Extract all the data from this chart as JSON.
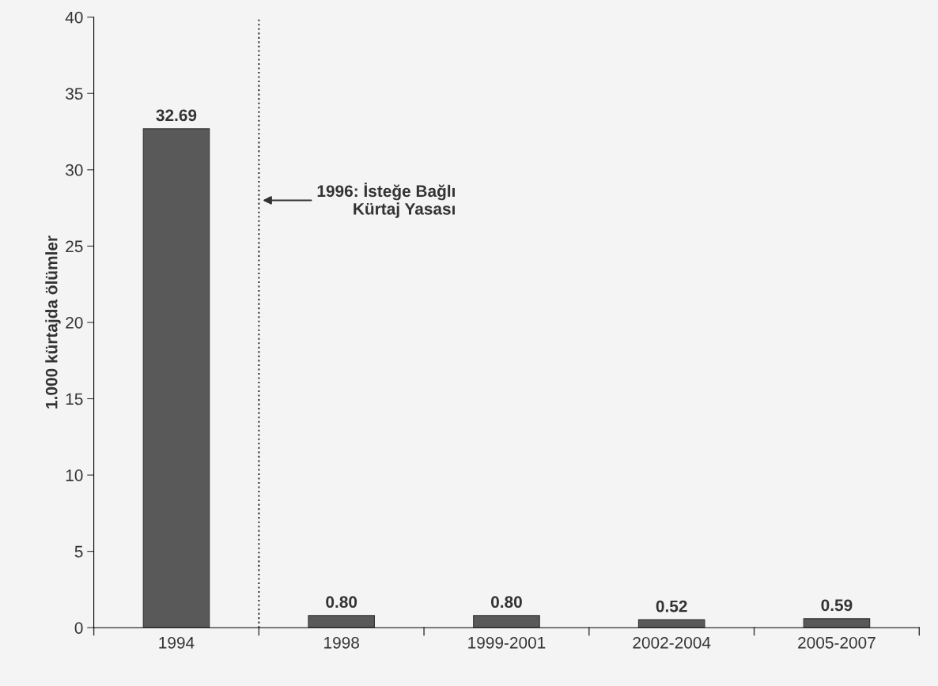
{
  "chart_data": {
    "type": "bar",
    "ylabel": "1.000 kürtajda ölümler",
    "categories": [
      "1994",
      "1998",
      "1999-2001",
      "2002-2004",
      "2005-2007"
    ],
    "values": [
      32.69,
      0.8,
      0.8,
      0.52,
      0.59
    ],
    "value_labels": [
      "32.69",
      "0.80",
      "0.80",
      "0.52",
      "0.59"
    ],
    "color": "#595959",
    "ylim": [
      0,
      40
    ],
    "yticks": [
      0,
      5,
      10,
      15,
      20,
      25,
      30,
      35,
      40
    ],
    "annotations": [
      "1996: İsteğe Bağlı\nKürtaj Yasası"
    ],
    "grid": false
  }
}
